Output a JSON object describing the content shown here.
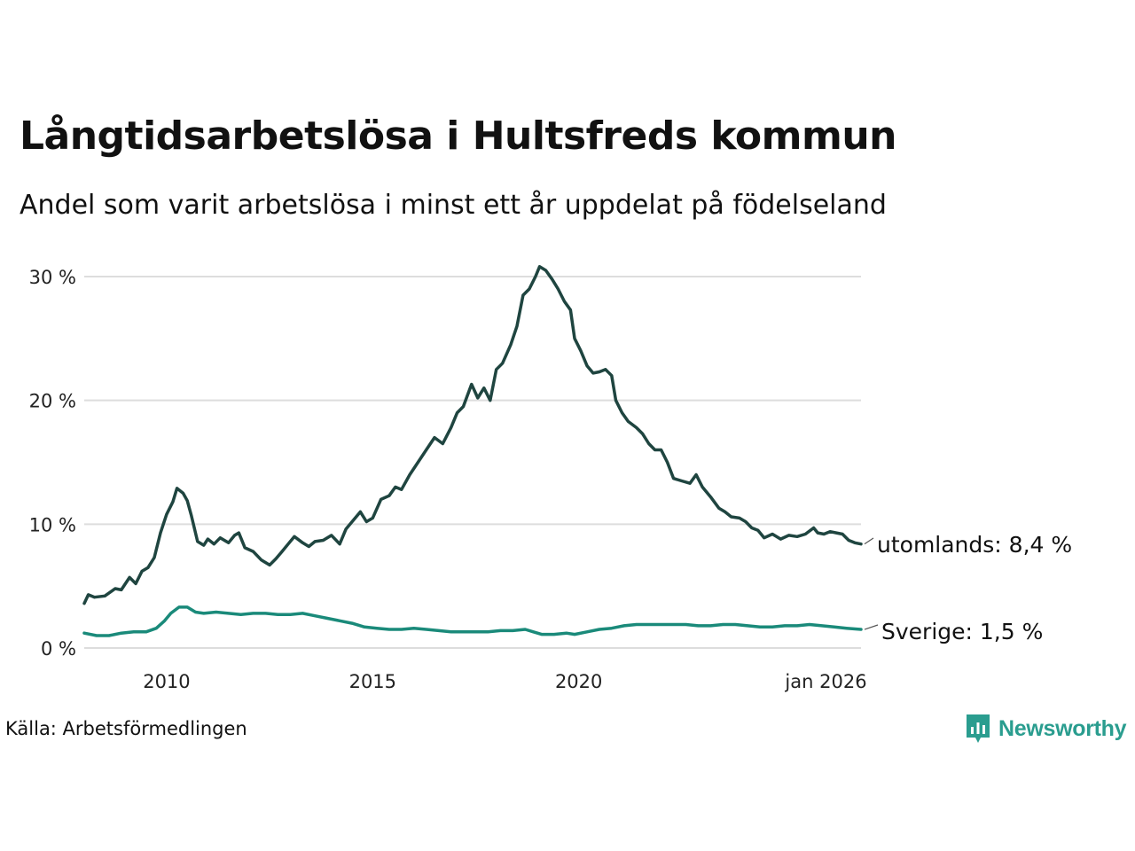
{
  "title": "Långtidsarbetslösa i Hultsfreds kommun",
  "subtitle": "Andel som varit arbetslösa i minst ett år uppdelat på födelseland",
  "source": "Källa: Arbetsförmedlingen",
  "brand": "Newsworthy",
  "colors": {
    "utomlands": "#1f4540",
    "sverige": "#1a8a7a",
    "grid": "#dddddd",
    "brand": "#2a9d8f"
  },
  "chart_data": {
    "type": "line",
    "title": "Långtidsarbetslösa i Hultsfreds kommun",
    "xlabel": "",
    "ylabel": "",
    "xlim": [
      2008.0,
      2026.0
    ],
    "ylim": [
      0,
      30
    ],
    "grid": true,
    "x_ticks": [
      {
        "value": 2010,
        "label": "2010"
      },
      {
        "value": 2015,
        "label": "2015"
      },
      {
        "value": 2020,
        "label": "2020"
      },
      {
        "value": 2026,
        "label": "jan 2026"
      }
    ],
    "y_ticks": [
      {
        "value": 0,
        "label": "0 %"
      },
      {
        "value": 10,
        "label": "10 %"
      },
      {
        "value": 20,
        "label": "20 %"
      },
      {
        "value": 30,
        "label": "30 %"
      }
    ],
    "series": [
      {
        "name": "utomlands",
        "end_label": "utomlands: 8,4 %",
        "points": [
          [
            2008.0,
            3.6
          ],
          [
            2008.1,
            4.3
          ],
          [
            2008.25,
            4.1
          ],
          [
            2008.5,
            4.2
          ],
          [
            2008.75,
            4.8
          ],
          [
            2008.9,
            4.7
          ],
          [
            2009.1,
            5.7
          ],
          [
            2009.25,
            5.2
          ],
          [
            2009.4,
            6.2
          ],
          [
            2009.55,
            6.5
          ],
          [
            2009.7,
            7.3
          ],
          [
            2009.85,
            9.3
          ],
          [
            2010.0,
            10.8
          ],
          [
            2010.15,
            11.8
          ],
          [
            2010.25,
            12.9
          ],
          [
            2010.4,
            12.5
          ],
          [
            2010.5,
            11.9
          ],
          [
            2010.6,
            10.7
          ],
          [
            2010.75,
            8.6
          ],
          [
            2010.9,
            8.3
          ],
          [
            2011.0,
            8.8
          ],
          [
            2011.15,
            8.4
          ],
          [
            2011.3,
            8.9
          ],
          [
            2011.5,
            8.5
          ],
          [
            2011.65,
            9.1
          ],
          [
            2011.75,
            9.3
          ],
          [
            2011.9,
            8.1
          ],
          [
            2012.1,
            7.8
          ],
          [
            2012.3,
            7.1
          ],
          [
            2012.5,
            6.7
          ],
          [
            2012.65,
            7.2
          ],
          [
            2012.8,
            7.8
          ],
          [
            2012.95,
            8.4
          ],
          [
            2013.1,
            9.0
          ],
          [
            2013.3,
            8.5
          ],
          [
            2013.45,
            8.2
          ],
          [
            2013.6,
            8.6
          ],
          [
            2013.8,
            8.7
          ],
          [
            2014.0,
            9.1
          ],
          [
            2014.2,
            8.4
          ],
          [
            2014.35,
            9.6
          ],
          [
            2014.5,
            10.2
          ],
          [
            2014.7,
            11.0
          ],
          [
            2014.85,
            10.2
          ],
          [
            2015.0,
            10.5
          ],
          [
            2015.2,
            12.0
          ],
          [
            2015.4,
            12.3
          ],
          [
            2015.55,
            13.0
          ],
          [
            2015.7,
            12.8
          ],
          [
            2015.9,
            14.0
          ],
          [
            2016.1,
            15.0
          ],
          [
            2016.3,
            16.0
          ],
          [
            2016.5,
            17.0
          ],
          [
            2016.7,
            16.5
          ],
          [
            2016.9,
            17.8
          ],
          [
            2017.05,
            19.0
          ],
          [
            2017.2,
            19.5
          ],
          [
            2017.4,
            21.3
          ],
          [
            2017.55,
            20.2
          ],
          [
            2017.7,
            21.0
          ],
          [
            2017.85,
            20.0
          ],
          [
            2018.0,
            22.5
          ],
          [
            2018.15,
            23.0
          ],
          [
            2018.35,
            24.5
          ],
          [
            2018.5,
            26.0
          ],
          [
            2018.65,
            28.5
          ],
          [
            2018.8,
            29.0
          ],
          [
            2018.95,
            30.0
          ],
          [
            2019.05,
            30.8
          ],
          [
            2019.2,
            30.5
          ],
          [
            2019.35,
            29.8
          ],
          [
            2019.5,
            29.0
          ],
          [
            2019.65,
            28.0
          ],
          [
            2019.8,
            27.3
          ],
          [
            2019.9,
            25.0
          ],
          [
            2020.05,
            24.0
          ],
          [
            2020.2,
            22.8
          ],
          [
            2020.35,
            22.2
          ],
          [
            2020.5,
            22.3
          ],
          [
            2020.65,
            22.5
          ],
          [
            2020.8,
            22.0
          ],
          [
            2020.9,
            20.0
          ],
          [
            2021.05,
            19.0
          ],
          [
            2021.2,
            18.3
          ],
          [
            2021.4,
            17.8
          ],
          [
            2021.55,
            17.3
          ],
          [
            2021.7,
            16.5
          ],
          [
            2021.85,
            16.0
          ],
          [
            2022.0,
            16.0
          ],
          [
            2022.15,
            15.0
          ],
          [
            2022.3,
            13.7
          ],
          [
            2022.5,
            13.5
          ],
          [
            2022.7,
            13.3
          ],
          [
            2022.85,
            14.0
          ],
          [
            2023.0,
            13.0
          ],
          [
            2023.2,
            12.2
          ],
          [
            2023.4,
            11.3
          ],
          [
            2023.55,
            11.0
          ],
          [
            2023.7,
            10.6
          ],
          [
            2023.9,
            10.5
          ],
          [
            2024.05,
            10.2
          ],
          [
            2024.2,
            9.7
          ],
          [
            2024.35,
            9.5
          ],
          [
            2024.5,
            8.9
          ],
          [
            2024.7,
            9.2
          ],
          [
            2024.9,
            8.8
          ],
          [
            2025.1,
            9.1
          ],
          [
            2025.3,
            9.0
          ],
          [
            2025.5,
            9.2
          ],
          [
            2025.7,
            9.7
          ],
          [
            2025.8,
            9.3
          ],
          [
            2025.95,
            9.2
          ],
          [
            2026.1,
            9.4
          ],
          [
            2026.25,
            9.3
          ],
          [
            2026.4,
            9.2
          ],
          [
            2026.55,
            8.7
          ],
          [
            2026.7,
            8.5
          ],
          [
            2026.85,
            8.4
          ]
        ]
      },
      {
        "name": "Sverige",
        "end_label": "Sverige: 1,5 %",
        "points": [
          [
            2008.0,
            1.2
          ],
          [
            2008.3,
            1.0
          ],
          [
            2008.6,
            1.0
          ],
          [
            2008.9,
            1.2
          ],
          [
            2009.2,
            1.3
          ],
          [
            2009.5,
            1.3
          ],
          [
            2009.75,
            1.6
          ],
          [
            2009.95,
            2.2
          ],
          [
            2010.1,
            2.8
          ],
          [
            2010.3,
            3.3
          ],
          [
            2010.5,
            3.3
          ],
          [
            2010.7,
            2.9
          ],
          [
            2010.9,
            2.8
          ],
          [
            2011.2,
            2.9
          ],
          [
            2011.5,
            2.8
          ],
          [
            2011.8,
            2.7
          ],
          [
            2012.1,
            2.8
          ],
          [
            2012.4,
            2.8
          ],
          [
            2012.7,
            2.7
          ],
          [
            2013.0,
            2.7
          ],
          [
            2013.3,
            2.8
          ],
          [
            2013.6,
            2.6
          ],
          [
            2013.9,
            2.4
          ],
          [
            2014.2,
            2.2
          ],
          [
            2014.5,
            2.0
          ],
          [
            2014.8,
            1.7
          ],
          [
            2015.1,
            1.6
          ],
          [
            2015.4,
            1.5
          ],
          [
            2015.7,
            1.5
          ],
          [
            2016.0,
            1.6
          ],
          [
            2016.3,
            1.5
          ],
          [
            2016.6,
            1.4
          ],
          [
            2016.9,
            1.3
          ],
          [
            2017.2,
            1.3
          ],
          [
            2017.5,
            1.3
          ],
          [
            2017.8,
            1.3
          ],
          [
            2018.1,
            1.4
          ],
          [
            2018.4,
            1.4
          ],
          [
            2018.7,
            1.5
          ],
          [
            2018.9,
            1.3
          ],
          [
            2019.1,
            1.1
          ],
          [
            2019.4,
            1.1
          ],
          [
            2019.7,
            1.2
          ],
          [
            2019.9,
            1.1
          ],
          [
            2020.2,
            1.3
          ],
          [
            2020.5,
            1.5
          ],
          [
            2020.8,
            1.6
          ],
          [
            2021.1,
            1.8
          ],
          [
            2021.4,
            1.9
          ],
          [
            2021.7,
            1.9
          ],
          [
            2022.0,
            1.9
          ],
          [
            2022.3,
            1.9
          ],
          [
            2022.6,
            1.9
          ],
          [
            2022.9,
            1.8
          ],
          [
            2023.2,
            1.8
          ],
          [
            2023.5,
            1.9
          ],
          [
            2023.8,
            1.9
          ],
          [
            2024.1,
            1.8
          ],
          [
            2024.4,
            1.7
          ],
          [
            2024.7,
            1.7
          ],
          [
            2025.0,
            1.8
          ],
          [
            2025.3,
            1.8
          ],
          [
            2025.6,
            1.9
          ],
          [
            2025.9,
            1.8
          ],
          [
            2026.2,
            1.7
          ],
          [
            2026.5,
            1.6
          ],
          [
            2026.85,
            1.5
          ]
        ]
      }
    ]
  }
}
